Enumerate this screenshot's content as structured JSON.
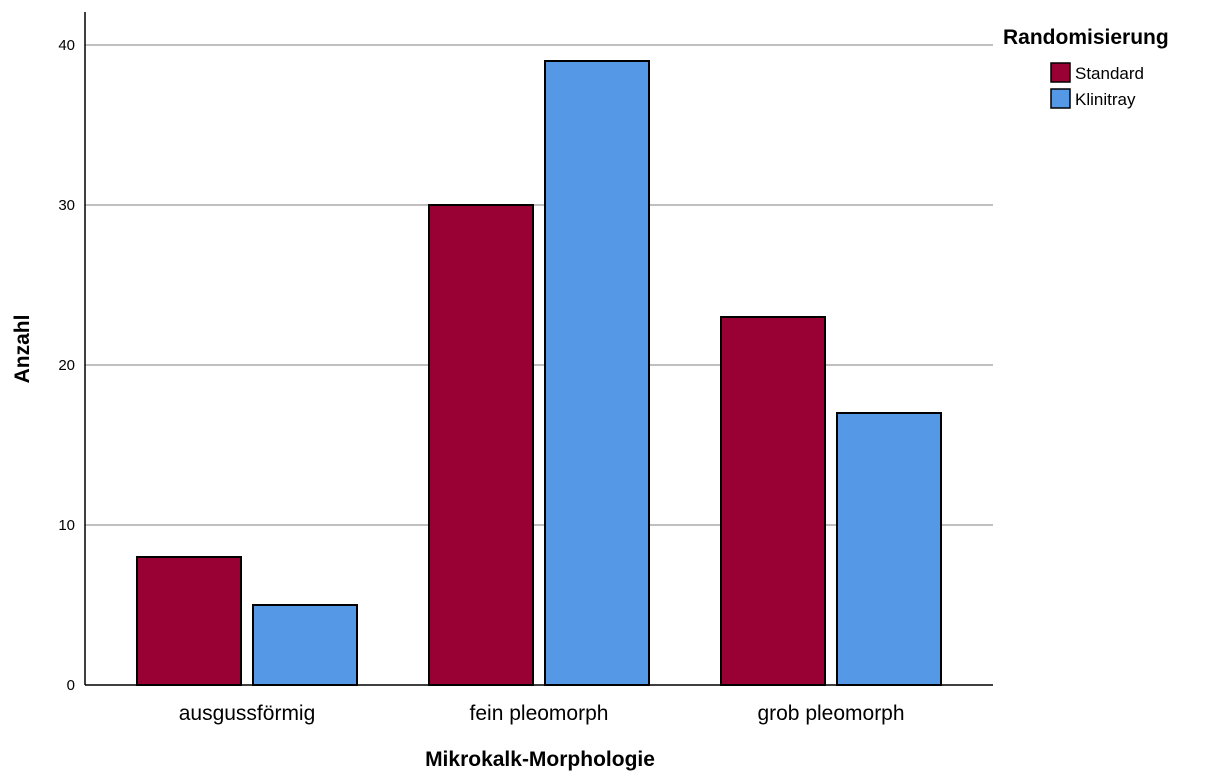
{
  "chart_data": {
    "type": "bar",
    "xlabel": "Mikrokalk-Morphologie",
    "ylabel": "Anzahl",
    "categories": [
      "ausgussförmig",
      "fein pleomorph",
      "grob pleomorph"
    ],
    "ylim": [
      0,
      42
    ],
    "yticks": [
      0,
      10,
      20,
      30,
      40
    ],
    "grid": "horizontal",
    "legend": {
      "title": "Randomisierung",
      "placement": "top-right"
    },
    "series": [
      {
        "name": "Standard",
        "color": "#990033",
        "values": [
          8,
          30,
          23
        ]
      },
      {
        "name": "Klinitray",
        "color": "#5599e6",
        "values": [
          5,
          39,
          17
        ]
      }
    ]
  }
}
